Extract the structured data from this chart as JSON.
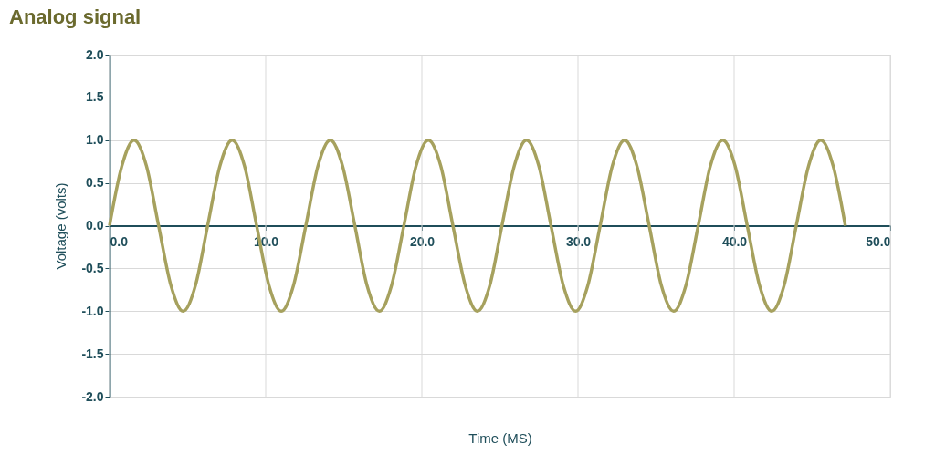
{
  "chart_data": {
    "type": "line",
    "title": "Analog signal",
    "xlabel": "Time (MS)",
    "ylabel": "Voltage (volts)",
    "x": [
      0,
      0.79,
      1.57,
      2.36,
      3.14,
      3.93,
      4.71,
      5.5,
      6.28,
      7.07,
      7.85,
      8.64,
      9.42,
      10.21,
      11.0,
      11.78,
      12.57,
      13.35,
      14.14,
      14.92,
      15.71,
      16.49,
      17.28,
      18.06,
      18.85,
      19.63,
      20.42,
      21.21,
      21.99,
      22.78,
      23.56,
      24.35,
      25.13,
      25.92,
      26.7,
      27.49,
      28.27,
      29.06,
      29.85,
      30.63,
      31.42,
      32.2,
      32.99,
      33.77,
      34.56,
      35.34,
      36.13,
      36.91,
      37.7,
      38.48,
      39.27,
      40.06,
      40.84,
      41.63,
      42.41,
      43.2,
      43.98,
      44.77,
      45.55,
      46.34,
      47.12
    ],
    "series": [
      {
        "color": "#a6a15e",
        "values": [
          0,
          0.7,
          1,
          0.7,
          0,
          -0.7,
          -1,
          -0.7,
          0,
          0.7,
          1,
          0.7,
          0,
          -0.7,
          -1,
          -0.7,
          0,
          0.7,
          1,
          0.7,
          0,
          -0.7,
          -1,
          -0.7,
          0,
          0.7,
          1,
          0.7,
          0,
          -0.7,
          -1,
          -0.7,
          0,
          0.7,
          1,
          0.7,
          0,
          -0.7,
          -1,
          -0.7,
          0,
          0.7,
          1,
          0.7,
          0,
          -0.7,
          -1,
          -0.7,
          0,
          0.7,
          1,
          0.7,
          0,
          -0.7,
          -1,
          -0.7,
          0,
          0.7,
          1,
          0.7,
          0
        ]
      }
    ],
    "xlim": [
      0,
      50
    ],
    "ylim": [
      -2,
      2
    ],
    "xticks": [
      {
        "value": 0,
        "label": "0.0"
      },
      {
        "value": 10,
        "label": "10.0"
      },
      {
        "value": 20,
        "label": "20.0"
      },
      {
        "value": 30,
        "label": "30.0"
      },
      {
        "value": 40,
        "label": "40.0"
      },
      {
        "value": 50,
        "label": "50.0"
      }
    ],
    "yticks": [
      {
        "value": -2,
        "label": "-2.0"
      },
      {
        "value": -1.5,
        "label": "-1.5"
      },
      {
        "value": -1,
        "label": "-1.0"
      },
      {
        "value": -0.5,
        "label": "-0.5"
      },
      {
        "value": 0,
        "label": "0.0"
      },
      {
        "value": 0.5,
        "label": "0.5"
      },
      {
        "value": 1,
        "label": "1.0"
      },
      {
        "value": 1.5,
        "label": "1.5"
      },
      {
        "value": 2,
        "label": "2.0"
      }
    ],
    "grid": true,
    "line_style": "solid"
  }
}
